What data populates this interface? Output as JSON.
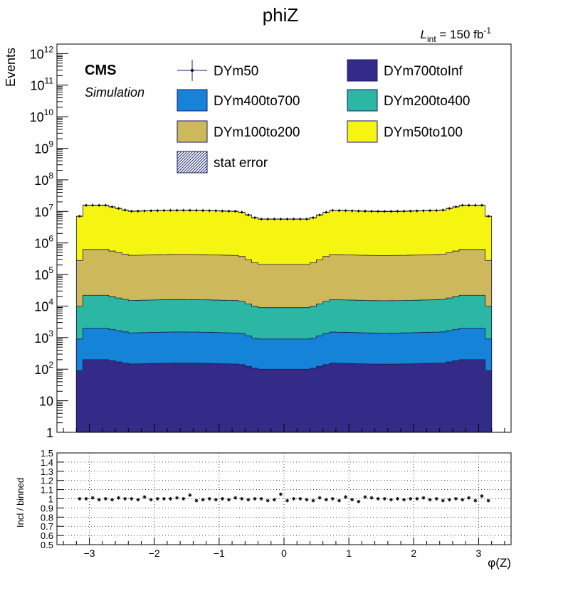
{
  "chart_data": [
    {
      "type": "area",
      "stacked": true,
      "title": "phiZ",
      "lumi_label": {
        "main": "L",
        "sub": "int",
        "rest": " = 150 fb",
        "sup": "-1"
      },
      "cms_label": "CMS",
      "sim_label": "Simulation",
      "ylabel": "Events",
      "yscale": "log",
      "ylim": [
        1,
        2000000000000.0
      ],
      "xlim": [
        -3.5,
        3.5
      ],
      "x_range_filled": [
        -3.2,
        3.2
      ],
      "nbins": 64,
      "y_tick_labels": [
        {
          "value": 1,
          "base": "1",
          "exp": ""
        },
        {
          "value": 10,
          "base": "10",
          "exp": ""
        },
        {
          "value": 100,
          "base": "10",
          "exp": "2"
        },
        {
          "value": 1000,
          "base": "10",
          "exp": "3"
        },
        {
          "value": 10000,
          "base": "10",
          "exp": "4"
        },
        {
          "value": 100000,
          "base": "10",
          "exp": "5"
        },
        {
          "value": 1000000,
          "base": "10",
          "exp": "6"
        },
        {
          "value": 10000000,
          "base": "10",
          "exp": "7"
        },
        {
          "value": 100000000,
          "base": "10",
          "exp": "8"
        },
        {
          "value": 1000000000,
          "base": "10",
          "exp": "9"
        },
        {
          "value": 10000000000,
          "base": "10",
          "exp": "10"
        },
        {
          "value": 100000000000,
          "base": "10",
          "exp": "11"
        },
        {
          "value": 1000000000000,
          "base": "10",
          "exp": "12"
        }
      ],
      "series": [
        {
          "name": "DYm700toInf",
          "color": "#342a88",
          "edge": 200,
          "plateau": 150,
          "dip": 100
        },
        {
          "name": "DYm400to700",
          "color": "#1583d8",
          "edge": 1800,
          "plateau": 1300,
          "dip": 800
        },
        {
          "name": "DYm200to400",
          "color": "#2bb7a4",
          "edge": 20000,
          "plateau": 14000,
          "dip": 8000
        },
        {
          "name": "DYm100to200",
          "color": "#cdb95c",
          "edge": 600000,
          "plateau": 400000,
          "dip": 200000
        },
        {
          "name": "DYm50to100",
          "color": "#f6f411",
          "edge": 15000000,
          "plateau": 10000000,
          "dip": 5500000
        }
      ],
      "data_series": {
        "name": "DYm50"
      },
      "stat_error_label": "stat error",
      "legend": [
        {
          "label": "DYm50",
          "style": "marker"
        },
        {
          "label": "DYm700toInf",
          "style": "fill",
          "color": "#342a88"
        },
        {
          "label": "DYm400to700",
          "style": "fill",
          "color": "#1583d8"
        },
        {
          "label": "DYm200to400",
          "style": "fill",
          "color": "#2bb7a4"
        },
        {
          "label": "DYm100to200",
          "style": "fill",
          "color": "#cdb95c"
        },
        {
          "label": "DYm50to100",
          "style": "fill",
          "color": "#f6f411"
        },
        {
          "label": "stat error",
          "style": "hatch"
        }
      ],
      "legend_placement": "top"
    },
    {
      "type": "scatter",
      "ylabel": "Incl / binned",
      "xlabel": "φ(Z)",
      "ylim": [
        0.5,
        1.5
      ],
      "grid": true,
      "y_ticks": [
        "0.5",
        "0.6",
        "0.7",
        "0.8",
        "0.9",
        "1",
        "1.1",
        "1.2",
        "1.3",
        "1.4",
        "1.5"
      ],
      "x_ticks": [
        {
          "value": -3,
          "label": "−3"
        },
        {
          "value": -2,
          "label": "−2"
        },
        {
          "value": -1,
          "label": "−1"
        },
        {
          "value": 0,
          "label": "0"
        },
        {
          "value": 1,
          "label": "1"
        },
        {
          "value": 2,
          "label": "2"
        },
        {
          "value": 3,
          "label": "3"
        }
      ],
      "ratio_values": [
        1.0,
        1.0,
        1.01,
        0.99,
        1.0,
        0.99,
        1.01,
        1.0,
        1.0,
        0.99,
        1.02,
        0.99,
        1.0,
        1.0,
        1.0,
        1.01,
        1.0,
        1.04,
        0.98,
        0.99,
        1.0,
        0.99,
        1.0,
        0.99,
        1.01,
        1.0,
        0.99,
        1.0,
        1.0,
        0.98,
        0.99,
        1.05,
        0.98,
        1.0,
        1.0,
        0.99,
        0.98,
        1.01,
        0.99,
        1.0,
        0.98,
        1.02,
        0.99,
        0.97,
        1.02,
        1.01,
        1.0,
        1.0,
        0.99,
        1.0,
        0.99,
        1.0,
        1.0,
        1.01,
        0.99,
        1.0,
        0.98,
        0.99,
        1.0,
        0.99,
        1.01,
        0.98,
        1.03,
        0.98
      ]
    }
  ]
}
